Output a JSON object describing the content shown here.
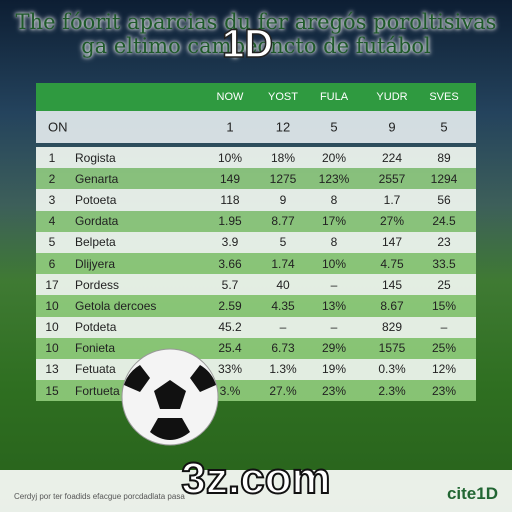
{
  "header": {
    "title_line1": "The fóorit aparcias du fer aregós poroltisivas",
    "title_line2": "ga eltimo campeoncto de futábol",
    "watermark": "1D"
  },
  "table": {
    "columns": [
      "NOW",
      "YOST",
      "FULA",
      "YUDR",
      "SVES"
    ],
    "subrow": {
      "label": "ON",
      "values": [
        "1",
        "12",
        "5",
        "9",
        "5"
      ]
    },
    "rows": [
      [
        "1",
        "Rogista",
        "10%",
        "18%",
        "20%",
        "224",
        "89"
      ],
      [
        "2",
        "Genarta",
        "149",
        "1275",
        "123%",
        "2557",
        "1294"
      ],
      [
        "3",
        "Potoeta",
        "118",
        "9",
        "8",
        "1.7",
        "56"
      ],
      [
        "4",
        "Gordata",
        "1.95",
        "8.77",
        "17%",
        "27%",
        "24.5"
      ],
      [
        "5",
        "Belpeta",
        "3.9",
        "5",
        "8",
        "147",
        "23"
      ],
      [
        "6",
        "Dlijyera",
        "3.66",
        "1.74",
        "10%",
        "4.75",
        "33.5"
      ],
      [
        "17",
        "Pordess",
        "5.7",
        "40",
        "–",
        "145",
        "25"
      ],
      [
        "10",
        "Getola dercoes",
        "2.59",
        "4.35",
        "13%",
        "8.67",
        "15%"
      ],
      [
        "10",
        "Potdeta",
        "45.2",
        "–",
        "–",
        "829",
        "–"
      ],
      [
        "10",
        "Fonieta",
        "25.4",
        "6.73",
        "29%",
        "1575",
        "25%"
      ],
      [
        "13",
        "Fetuata",
        "33%",
        "1.3%",
        "19%",
        "0.3%",
        "12%"
      ],
      [
        "15",
        "Fortueta",
        "3.%",
        "27.%",
        "23%",
        "2.3%",
        "23%"
      ]
    ]
  },
  "footer": {
    "note": "Cerdyj por ter foadids efacgue porcdadlata pasa",
    "site": "3z.com",
    "brand": "cite1D"
  }
}
